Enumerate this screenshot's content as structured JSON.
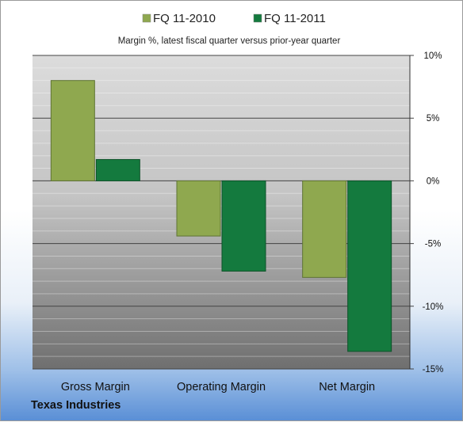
{
  "colors": {
    "series_2010": "#8fa84f",
    "series_2011": "#147a3e",
    "grid": "#444444"
  },
  "chart_data": {
    "type": "bar",
    "title": "Margin %,  latest fiscal quarter versus prior-year quarter",
    "company": "Texas Industries",
    "categories": [
      "Gross Margin",
      "Operating Margin",
      "Net Margin"
    ],
    "series": [
      {
        "name": "FQ 11-2010",
        "values": [
          8.0,
          -4.4,
          -7.7
        ]
      },
      {
        "name": "FQ 11-2011",
        "values": [
          1.7,
          -7.2,
          -13.6
        ]
      }
    ],
    "ylim": [
      -15,
      10
    ],
    "yticks": [
      10,
      5,
      0,
      -5,
      -10,
      -15
    ],
    "ytick_labels": [
      "10%",
      "5%",
      "0%",
      "-5%",
      "-10%",
      "-15%"
    ],
    "ytick_position": "right",
    "legend_position": "top",
    "grid": true
  }
}
